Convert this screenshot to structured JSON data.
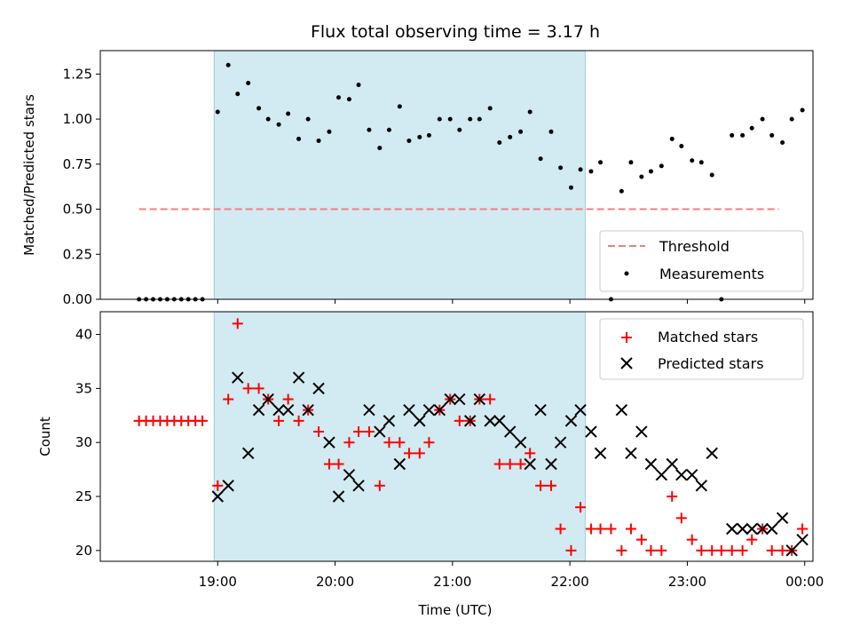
{
  "chart_data": {
    "title": "Flux total observing time = 3.17 h",
    "x_axis": {
      "label": "Time (UTC)",
      "range_hours": [
        18.0,
        24.07
      ],
      "tick_hours": [
        19,
        20,
        21,
        22,
        23,
        24
      ],
      "tick_labels": [
        "19:00",
        "20:00",
        "21:00",
        "22:00",
        "23:00",
        "00:00"
      ]
    },
    "shaded_window_hours": [
      18.97,
      22.13
    ],
    "top_panel": {
      "type": "scatter",
      "ylabel": "Matched/Predicted stars",
      "ylim": [
        0,
        1.38
      ],
      "yticks": [
        0.0,
        0.25,
        0.5,
        0.75,
        1.0,
        1.25
      ],
      "ytick_labels": [
        "0.00",
        "0.25",
        "0.50",
        "0.75",
        "1.00",
        "1.25"
      ],
      "threshold": {
        "name": "Threshold",
        "value": 0.5,
        "x_range": [
          18.33,
          23.78
        ],
        "color": "#f08080"
      },
      "legend": [
        "Threshold",
        "Measurements"
      ],
      "legend_position": "bottom-right",
      "series": [
        {
          "name": "Measurements",
          "color": "#000000",
          "points": [
            [
              18.33,
              0
            ],
            [
              18.39,
              0
            ],
            [
              18.45,
              0
            ],
            [
              18.51,
              0
            ],
            [
              18.57,
              0
            ],
            [
              18.63,
              0
            ],
            [
              18.69,
              0
            ],
            [
              18.75,
              0
            ],
            [
              18.81,
              0
            ],
            [
              18.87,
              0
            ],
            [
              19.0,
              1.04
            ],
            [
              19.09,
              1.3
            ],
            [
              19.17,
              1.14
            ],
            [
              19.26,
              1.2
            ],
            [
              19.35,
              1.06
            ],
            [
              19.43,
              1.0
            ],
            [
              19.52,
              0.97
            ],
            [
              19.6,
              1.03
            ],
            [
              19.69,
              0.89
            ],
            [
              19.77,
              1.0
            ],
            [
              19.86,
              0.88
            ],
            [
              19.95,
              0.93
            ],
            [
              20.03,
              1.12
            ],
            [
              20.12,
              1.11
            ],
            [
              20.2,
              1.19
            ],
            [
              20.29,
              0.94
            ],
            [
              20.38,
              0.84
            ],
            [
              20.46,
              0.94
            ],
            [
              20.55,
              1.07
            ],
            [
              20.63,
              0.88
            ],
            [
              20.72,
              0.9
            ],
            [
              20.8,
              0.91
            ],
            [
              20.89,
              1.0
            ],
            [
              20.98,
              1.0
            ],
            [
              21.06,
              0.94
            ],
            [
              21.15,
              1.0
            ],
            [
              21.23,
              1.0
            ],
            [
              21.32,
              1.06
            ],
            [
              21.4,
              0.87
            ],
            [
              21.49,
              0.9
            ],
            [
              21.58,
              0.93
            ],
            [
              21.66,
              1.04
            ],
            [
              21.75,
              0.78
            ],
            [
              21.84,
              0.93
            ],
            [
              21.92,
              0.73
            ],
            [
              22.01,
              0.62
            ],
            [
              22.09,
              0.72
            ],
            [
              22.18,
              0.71
            ],
            [
              22.26,
              0.76
            ],
            [
              22.35,
              0
            ],
            [
              22.44,
              0.6
            ],
            [
              22.52,
              0.76
            ],
            [
              22.61,
              0.68
            ],
            [
              22.69,
              0.71
            ],
            [
              22.78,
              0.74
            ],
            [
              22.87,
              0.89
            ],
            [
              22.95,
              0.85
            ],
            [
              23.04,
              0.77
            ],
            [
              23.12,
              0.76
            ],
            [
              23.21,
              0.69
            ],
            [
              23.29,
              0
            ],
            [
              23.38,
              0.91
            ],
            [
              23.47,
              0.91
            ],
            [
              23.55,
              0.95
            ],
            [
              23.64,
              1.0
            ],
            [
              23.72,
              0.91
            ],
            [
              23.81,
              0.87
            ],
            [
              23.89,
              1.0
            ],
            [
              23.98,
              1.05
            ]
          ]
        }
      ]
    },
    "bottom_panel": {
      "type": "scatter",
      "ylabel": "Count",
      "ylim": [
        19,
        42.1
      ],
      "yticks": [
        20,
        25,
        30,
        35,
        40
      ],
      "ytick_labels": [
        "20",
        "25",
        "30",
        "35",
        "40"
      ],
      "legend": [
        "Matched stars",
        "Predicted stars"
      ],
      "legend_position": "top-right",
      "series": [
        {
          "name": "Matched stars",
          "marker": "plus",
          "color": "#ff0000",
          "points": [
            [
              18.33,
              32
            ],
            [
              18.39,
              32
            ],
            [
              18.45,
              32
            ],
            [
              18.51,
              32
            ],
            [
              18.57,
              32
            ],
            [
              18.63,
              32
            ],
            [
              18.69,
              32
            ],
            [
              18.75,
              32
            ],
            [
              18.81,
              32
            ],
            [
              18.87,
              32
            ],
            [
              19.0,
              26
            ],
            [
              19.09,
              34
            ],
            [
              19.17,
              41
            ],
            [
              19.26,
              35
            ],
            [
              19.35,
              35
            ],
            [
              19.43,
              34
            ],
            [
              19.52,
              32
            ],
            [
              19.6,
              34
            ],
            [
              19.69,
              32
            ],
            [
              19.77,
              33
            ],
            [
              19.86,
              31
            ],
            [
              19.95,
              28
            ],
            [
              20.03,
              28
            ],
            [
              20.12,
              30
            ],
            [
              20.2,
              31
            ],
            [
              20.29,
              31
            ],
            [
              20.38,
              26
            ],
            [
              20.46,
              30
            ],
            [
              20.55,
              30
            ],
            [
              20.63,
              29
            ],
            [
              20.72,
              29
            ],
            [
              20.8,
              30
            ],
            [
              20.89,
              33
            ],
            [
              20.98,
              34
            ],
            [
              21.06,
              32
            ],
            [
              21.15,
              32
            ],
            [
              21.23,
              34
            ],
            [
              21.32,
              34
            ],
            [
              21.4,
              28
            ],
            [
              21.49,
              28
            ],
            [
              21.58,
              28
            ],
            [
              21.66,
              29
            ],
            [
              21.75,
              26
            ],
            [
              21.84,
              26
            ],
            [
              21.92,
              22
            ],
            [
              22.01,
              20
            ],
            [
              22.09,
              24
            ],
            [
              22.18,
              22
            ],
            [
              22.26,
              22
            ],
            [
              22.35,
              22
            ],
            [
              22.44,
              20
            ],
            [
              22.52,
              22
            ],
            [
              22.61,
              21
            ],
            [
              22.69,
              20
            ],
            [
              22.78,
              20
            ],
            [
              22.87,
              25
            ],
            [
              22.95,
              23
            ],
            [
              23.04,
              21
            ],
            [
              23.12,
              20
            ],
            [
              23.21,
              20
            ],
            [
              23.29,
              20
            ],
            [
              23.38,
              20
            ],
            [
              23.47,
              20
            ],
            [
              23.55,
              21
            ],
            [
              23.64,
              22
            ],
            [
              23.72,
              20
            ],
            [
              23.81,
              20
            ],
            [
              23.89,
              20
            ],
            [
              23.98,
              22
            ]
          ]
        },
        {
          "name": "Predicted stars",
          "marker": "x",
          "color": "#000000",
          "points": [
            [
              19.0,
              25
            ],
            [
              19.09,
              26
            ],
            [
              19.17,
              36
            ],
            [
              19.26,
              29
            ],
            [
              19.35,
              33
            ],
            [
              19.43,
              34
            ],
            [
              19.52,
              33
            ],
            [
              19.6,
              33
            ],
            [
              19.69,
              36
            ],
            [
              19.77,
              33
            ],
            [
              19.86,
              35
            ],
            [
              19.95,
              30
            ],
            [
              20.03,
              25
            ],
            [
              20.12,
              27
            ],
            [
              20.2,
              26
            ],
            [
              20.29,
              33
            ],
            [
              20.38,
              31
            ],
            [
              20.46,
              32
            ],
            [
              20.55,
              28
            ],
            [
              20.63,
              33
            ],
            [
              20.72,
              32
            ],
            [
              20.8,
              33
            ],
            [
              20.89,
              33
            ],
            [
              20.98,
              34
            ],
            [
              21.06,
              34
            ],
            [
              21.15,
              32
            ],
            [
              21.23,
              34
            ],
            [
              21.32,
              32
            ],
            [
              21.4,
              32
            ],
            [
              21.49,
              31
            ],
            [
              21.58,
              30
            ],
            [
              21.66,
              28
            ],
            [
              21.75,
              33
            ],
            [
              21.84,
              28
            ],
            [
              21.92,
              30
            ],
            [
              22.01,
              32
            ],
            [
              22.09,
              33
            ],
            [
              22.18,
              31
            ],
            [
              22.26,
              29
            ],
            [
              22.44,
              33
            ],
            [
              22.52,
              29
            ],
            [
              22.61,
              31
            ],
            [
              22.69,
              28
            ],
            [
              22.78,
              27
            ],
            [
              22.87,
              28
            ],
            [
              22.95,
              27
            ],
            [
              23.04,
              27
            ],
            [
              23.12,
              26
            ],
            [
              23.21,
              29
            ],
            [
              23.38,
              22
            ],
            [
              23.47,
              22
            ],
            [
              23.55,
              22
            ],
            [
              23.64,
              22
            ],
            [
              23.72,
              22
            ],
            [
              23.81,
              23
            ],
            [
              23.89,
              20
            ],
            [
              23.98,
              21
            ]
          ]
        }
      ]
    }
  }
}
